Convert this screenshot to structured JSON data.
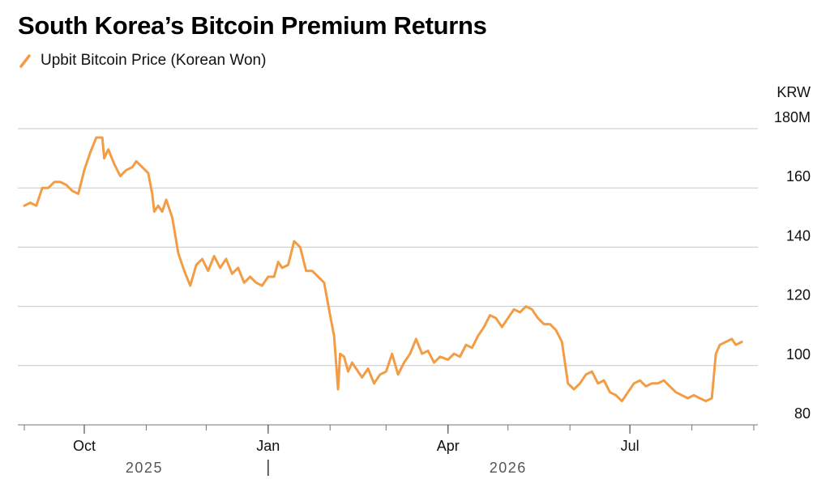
{
  "chart_data": {
    "type": "line",
    "title": "South Korea’s Bitcoin Premium Returns",
    "unit_label": "KRW",
    "y_ticks": [
      {
        "value": 180,
        "label": "180M"
      },
      {
        "value": 160,
        "label": "160"
      },
      {
        "value": 140,
        "label": "140"
      },
      {
        "value": 120,
        "label": "120"
      },
      {
        "value": 100,
        "label": "100"
      },
      {
        "value": 80,
        "label": "80"
      }
    ],
    "ylim": [
      80,
      180
    ],
    "grid": true,
    "legend_position": "top-left",
    "x_ticks": [
      {
        "date": "2025-10-01",
        "label": "Oct"
      },
      {
        "date": "2026-01-01",
        "label": "Jan"
      },
      {
        "date": "2026-04-01",
        "label": "Apr"
      },
      {
        "date": "2026-07-01",
        "label": "Jul"
      }
    ],
    "minor_x_ticks": [
      "2025-09-01",
      "2025-10-01",
      "2025-11-01",
      "2025-12-01",
      "2026-01-01",
      "2026-02-01",
      "2026-03-01",
      "2026-04-01",
      "2026-05-01",
      "2026-06-01",
      "2026-07-01",
      "2026-08-01",
      "2026-09-01"
    ],
    "years": [
      {
        "label": "2025",
        "date": "2025-10-31"
      },
      {
        "label": "2026",
        "date": "2026-05-01"
      }
    ],
    "year_divider_date": "2026-01-01",
    "xlim": [
      "2025-09-01",
      "2026-09-01"
    ],
    "series": [
      {
        "name": "Upbit Bitcoin Price (Korean Won)",
        "color": "#F29D45",
        "points": [
          [
            "2025-09-01",
            154
          ],
          [
            "2025-09-04",
            155
          ],
          [
            "2025-09-07",
            154
          ],
          [
            "2025-09-10",
            160
          ],
          [
            "2025-09-13",
            160
          ],
          [
            "2025-09-16",
            162
          ],
          [
            "2025-09-19",
            162
          ],
          [
            "2025-09-22",
            161
          ],
          [
            "2025-09-25",
            159
          ],
          [
            "2025-09-28",
            158
          ],
          [
            "2025-10-01",
            166
          ],
          [
            "2025-10-04",
            172
          ],
          [
            "2025-10-07",
            177
          ],
          [
            "2025-10-10",
            177
          ],
          [
            "2025-10-11",
            170
          ],
          [
            "2025-10-13",
            173
          ],
          [
            "2025-10-16",
            168
          ],
          [
            "2025-10-19",
            164
          ],
          [
            "2025-10-22",
            166
          ],
          [
            "2025-10-25",
            167
          ],
          [
            "2025-10-27",
            169
          ],
          [
            "2025-10-30",
            167
          ],
          [
            "2025-11-02",
            165
          ],
          [
            "2025-11-04",
            158
          ],
          [
            "2025-11-05",
            152
          ],
          [
            "2025-11-07",
            154
          ],
          [
            "2025-11-09",
            152
          ],
          [
            "2025-11-11",
            156
          ],
          [
            "2025-11-14",
            150
          ],
          [
            "2025-11-17",
            138
          ],
          [
            "2025-11-20",
            132
          ],
          [
            "2025-11-23",
            127
          ],
          [
            "2025-11-26",
            134
          ],
          [
            "2025-11-29",
            136
          ],
          [
            "2025-12-02",
            132
          ],
          [
            "2025-12-05",
            137
          ],
          [
            "2025-12-08",
            133
          ],
          [
            "2025-12-11",
            136
          ],
          [
            "2025-12-14",
            131
          ],
          [
            "2025-12-17",
            133
          ],
          [
            "2025-12-20",
            128
          ],
          [
            "2025-12-23",
            130
          ],
          [
            "2025-12-26",
            128
          ],
          [
            "2025-12-29",
            127
          ],
          [
            "2026-01-01",
            130
          ],
          [
            "2026-01-04",
            130
          ],
          [
            "2026-01-06",
            135
          ],
          [
            "2026-01-08",
            133
          ],
          [
            "2026-01-11",
            134
          ],
          [
            "2026-01-14",
            142
          ],
          [
            "2026-01-17",
            140
          ],
          [
            "2026-01-20",
            132
          ],
          [
            "2026-01-23",
            132
          ],
          [
            "2026-01-26",
            130
          ],
          [
            "2026-01-29",
            128
          ],
          [
            "2026-02-01",
            117
          ],
          [
            "2026-02-03",
            110
          ],
          [
            "2026-02-05",
            92
          ],
          [
            "2026-02-06",
            104
          ],
          [
            "2026-02-08",
            103
          ],
          [
            "2026-02-10",
            98
          ],
          [
            "2026-02-12",
            101
          ],
          [
            "2026-02-14",
            99
          ],
          [
            "2026-02-17",
            96
          ],
          [
            "2026-02-20",
            99
          ],
          [
            "2026-02-23",
            94
          ],
          [
            "2026-02-26",
            97
          ],
          [
            "2026-03-01",
            98
          ],
          [
            "2026-03-04",
            104
          ],
          [
            "2026-03-07",
            97
          ],
          [
            "2026-03-10",
            101
          ],
          [
            "2026-03-13",
            104
          ],
          [
            "2026-03-16",
            109
          ],
          [
            "2026-03-19",
            104
          ],
          [
            "2026-03-22",
            105
          ],
          [
            "2026-03-25",
            101
          ],
          [
            "2026-03-28",
            103
          ],
          [
            "2026-04-01",
            102
          ],
          [
            "2026-04-04",
            104
          ],
          [
            "2026-04-07",
            103
          ],
          [
            "2026-04-10",
            107
          ],
          [
            "2026-04-13",
            106
          ],
          [
            "2026-04-16",
            110
          ],
          [
            "2026-04-19",
            113
          ],
          [
            "2026-04-22",
            117
          ],
          [
            "2026-04-25",
            116
          ],
          [
            "2026-04-28",
            113
          ],
          [
            "2026-05-01",
            116
          ],
          [
            "2026-05-04",
            119
          ],
          [
            "2026-05-07",
            118
          ],
          [
            "2026-05-10",
            120
          ],
          [
            "2026-05-13",
            119
          ],
          [
            "2026-05-16",
            116
          ],
          [
            "2026-05-19",
            114
          ],
          [
            "2026-05-22",
            114
          ],
          [
            "2026-05-25",
            112
          ],
          [
            "2026-05-28",
            108
          ],
          [
            "2026-05-31",
            94
          ],
          [
            "2026-06-03",
            92
          ],
          [
            "2026-06-06",
            94
          ],
          [
            "2026-06-09",
            97
          ],
          [
            "2026-06-12",
            98
          ],
          [
            "2026-06-15",
            94
          ],
          [
            "2026-06-18",
            95
          ],
          [
            "2026-06-21",
            91
          ],
          [
            "2026-06-24",
            90
          ],
          [
            "2026-06-27",
            88
          ],
          [
            "2026-06-30",
            91
          ],
          [
            "2026-07-03",
            94
          ],
          [
            "2026-07-06",
            95
          ],
          [
            "2026-07-09",
            93
          ],
          [
            "2026-07-12",
            94
          ],
          [
            "2026-07-15",
            94
          ],
          [
            "2026-07-18",
            95
          ],
          [
            "2026-07-21",
            93
          ],
          [
            "2026-07-24",
            91
          ],
          [
            "2026-07-27",
            90
          ],
          [
            "2026-07-30",
            89
          ],
          [
            "2026-08-02",
            90
          ],
          [
            "2026-08-05",
            89
          ],
          [
            "2026-08-08",
            88
          ],
          [
            "2026-08-11",
            89
          ],
          [
            "2026-08-13",
            104
          ],
          [
            "2026-08-15",
            107
          ],
          [
            "2026-08-18",
            108
          ],
          [
            "2026-08-21",
            109
          ],
          [
            "2026-08-23",
            107
          ],
          [
            "2026-08-26",
            108
          ]
        ]
      }
    ]
  }
}
